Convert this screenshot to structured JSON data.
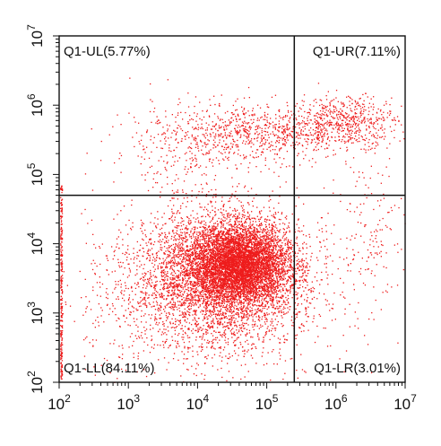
{
  "chart_data": {
    "type": "scatter",
    "x_scale": "log",
    "y_scale": "log",
    "xlim": [
      100,
      10000000
    ],
    "ylim": [
      100,
      10000000
    ],
    "x_ticks": [
      {
        "value": 100,
        "base": "10",
        "exp": "2"
      },
      {
        "value": 1000,
        "base": "10",
        "exp": "3"
      },
      {
        "value": 10000,
        "base": "10",
        "exp": "4"
      },
      {
        "value": 100000,
        "base": "10",
        "exp": "5"
      },
      {
        "value": 1000000,
        "base": "10",
        "exp": "6"
      },
      {
        "value": 10000000,
        "base": "10",
        "exp": "7"
      }
    ],
    "y_ticks": [
      {
        "value": 100,
        "base": "10",
        "exp": "2"
      },
      {
        "value": 1000,
        "base": "10",
        "exp": "3"
      },
      {
        "value": 10000,
        "base": "10",
        "exp": "4"
      },
      {
        "value": 100000,
        "base": "10",
        "exp": "5"
      },
      {
        "value": 1000000,
        "base": "10",
        "exp": "6"
      },
      {
        "value": 10000000,
        "base": "10",
        "exp": "7"
      }
    ],
    "quadrant_gate": {
      "x": 250000,
      "y": 50000
    },
    "quadrants": [
      {
        "label": "Q1-UL(5.77%)",
        "name": "upper-left",
        "percent": 5.77,
        "position": "top-left"
      },
      {
        "label": "Q1-UR(7.11%)",
        "name": "upper-right",
        "percent": 7.11,
        "position": "top-right"
      },
      {
        "label": "Q1-LL(84.11%)",
        "name": "lower-left",
        "percent": 84.11,
        "position": "bottom-left"
      },
      {
        "label": "Q1-LR(3.01%)",
        "name": "lower-right",
        "percent": 3.01,
        "position": "bottom-right"
      }
    ],
    "point_color": "#ee1c1c",
    "axis_color": "#111111",
    "populations": [
      {
        "center": [
          40000,
          5000
        ],
        "spread_decades": [
          0.35,
          0.28
        ],
        "count": 5200
      },
      {
        "center": [
          20000,
          4000
        ],
        "spread_decades": [
          0.6,
          0.45
        ],
        "count": 3200
      },
      {
        "center": [
          12000,
          1500
        ],
        "spread_decades": [
          0.85,
          0.6
        ],
        "count": 1400
      },
      {
        "center": [
          100000,
          400000
        ],
        "spread_decades": [
          0.65,
          0.2
        ],
        "count": 700
      },
      {
        "center": [
          1500000,
          600000
        ],
        "spread_decades": [
          0.35,
          0.18
        ],
        "count": 500
      },
      {
        "center": [
          8000,
          250000
        ],
        "spread_decades": [
          0.6,
          0.35
        ],
        "count": 350
      },
      {
        "center": [
          3000000,
          15000
        ],
        "spread_decades": [
          0.4,
          0.6
        ],
        "count": 200
      }
    ]
  }
}
